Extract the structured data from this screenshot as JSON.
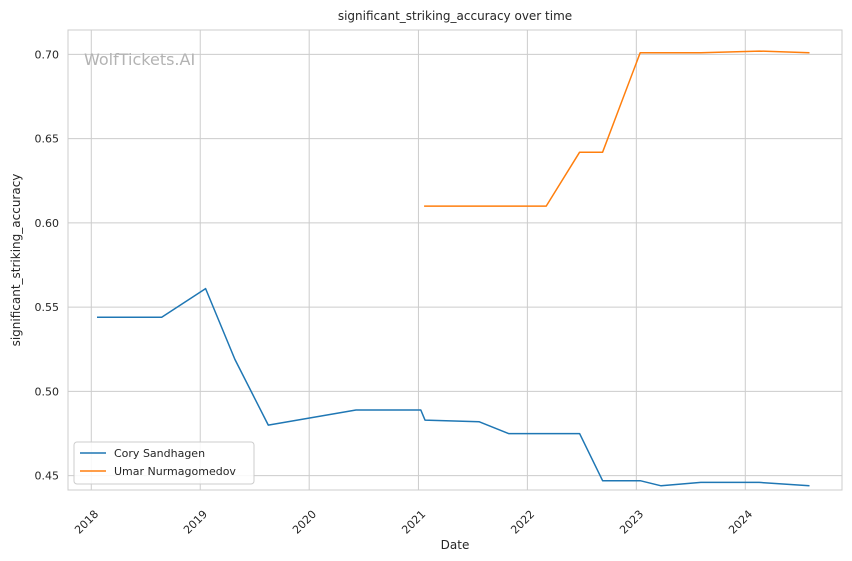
{
  "chart_data": {
    "type": "line",
    "title": "significant_striking_accuracy over time",
    "xlabel": "Date",
    "ylabel": "significant_striking_accuracy",
    "watermark": "WolfTickets.AI",
    "x_ticks": [
      "2018",
      "2019",
      "2020",
      "2021",
      "2022",
      "2023",
      "2024"
    ],
    "y_ticks": [
      "0.45",
      "0.50",
      "0.55",
      "0.60",
      "0.65",
      "0.70"
    ],
    "xlim": [
      "2017-10-15",
      "2024-11-20"
    ],
    "ylim": [
      0.4415,
      0.7145
    ],
    "grid": true,
    "legend_position": "lower-left",
    "series": [
      {
        "name": "Cory Sandhagen",
        "color": "#1f77b4",
        "points": [
          [
            "2018-01-20",
            0.544
          ],
          [
            "2018-08-25",
            0.544
          ],
          [
            "2019-01-19",
            0.561
          ],
          [
            "2019-04-27",
            0.519
          ],
          [
            "2019-08-17",
            0.48
          ],
          [
            "2020-06-06",
            0.489
          ],
          [
            "2021-01-09",
            0.489
          ],
          [
            "2021-01-23",
            0.483
          ],
          [
            "2021-07-24",
            0.482
          ],
          [
            "2021-10-30",
            0.475
          ],
          [
            "2022-06-25",
            0.475
          ],
          [
            "2022-09-10",
            0.447
          ],
          [
            "2023-01-14",
            0.447
          ],
          [
            "2023-03-25",
            0.444
          ],
          [
            "2023-08-05",
            0.446
          ],
          [
            "2024-02-17",
            0.446
          ],
          [
            "2024-08-03",
            0.444
          ]
        ]
      },
      {
        "name": "Umar Nurmagomedov",
        "color": "#ff7f0e",
        "points": [
          [
            "2021-01-20",
            0.61
          ],
          [
            "2022-03-05",
            0.61
          ],
          [
            "2022-06-25",
            0.642
          ],
          [
            "2022-09-10",
            0.642
          ],
          [
            "2023-01-14",
            0.701
          ],
          [
            "2023-08-05",
            0.701
          ],
          [
            "2024-02-17",
            0.702
          ],
          [
            "2024-08-03",
            0.701
          ]
        ]
      }
    ]
  }
}
